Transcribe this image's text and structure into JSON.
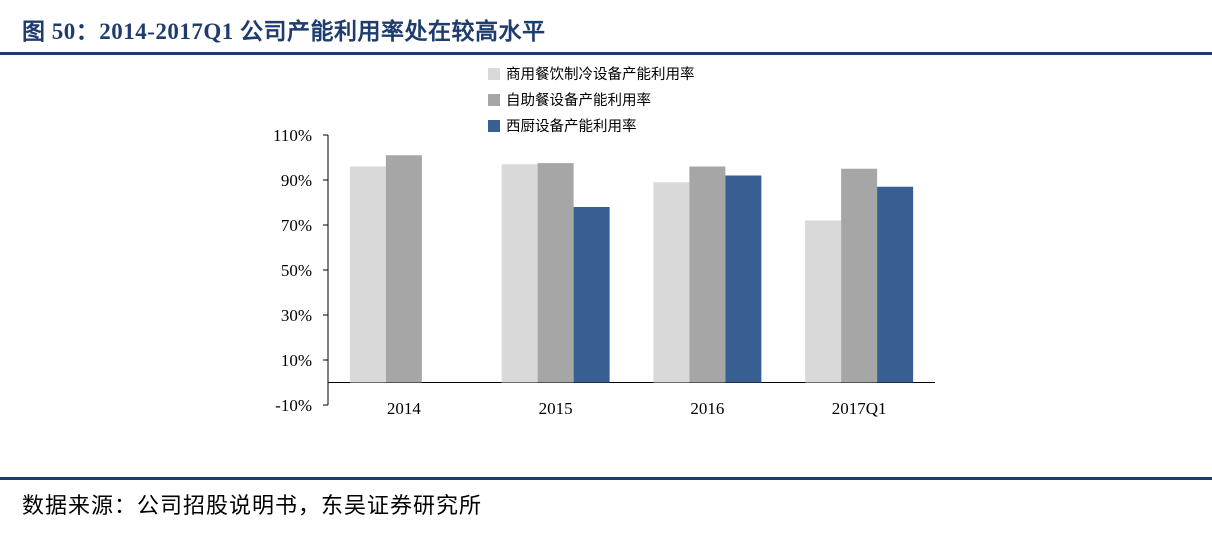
{
  "header": {
    "title": "图 50：2014-2017Q1 公司产能利用率处在较高水平"
  },
  "footer": {
    "source": "数据来源：公司招股说明书，东吴证券研究所"
  },
  "chart_data": {
    "type": "bar",
    "categories": [
      "2014",
      "2015",
      "2016",
      "2017Q1"
    ],
    "series": [
      {
        "name": "商用餐饮制冷设备产能利用率",
        "color": "#d9d9d9",
        "values": [
          96,
          97,
          89,
          72
        ]
      },
      {
        "name": "自助餐设备产能利用率",
        "color": "#a6a6a6",
        "values": [
          101,
          97.5,
          96,
          95
        ]
      },
      {
        "name": "西厨设备产能利用率",
        "color": "#375f91",
        "values": [
          null,
          78,
          92,
          87
        ]
      }
    ],
    "ylim": [
      -10,
      110
    ],
    "yticks": [
      -10,
      10,
      30,
      50,
      70,
      90,
      110
    ],
    "ytick_labels": [
      "-10%",
      "10%",
      "30%",
      "50%",
      "70%",
      "90%",
      "110%"
    ],
    "baseline": 0,
    "legend_position": "top",
    "grid": false
  }
}
